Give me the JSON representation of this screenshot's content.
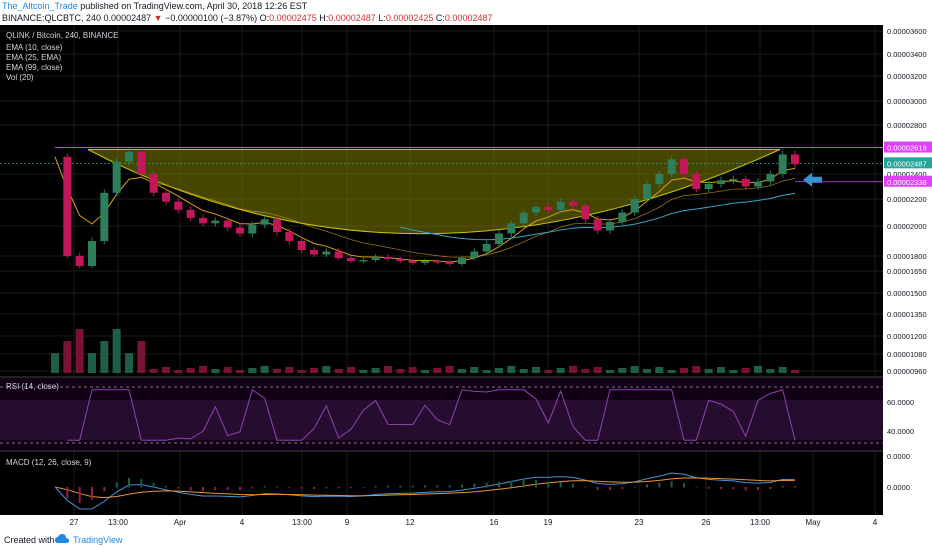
{
  "header": {
    "author": "The_Altcoin_Trade",
    "published": " published on TradingView.com, April 30, 2018 12:26 EST",
    "symbol": "BINANCE:QLCBTC, 240",
    "last": "0.00002487",
    "change": "−0.00000100 (−3.87%)",
    "o_label": "O:",
    "o": "0.00002475",
    "h_label": "H:",
    "h": "0.00002487",
    "l_label": "L:",
    "l": "0.00002425",
    "c_label": "C:",
    "c": "0.00002487"
  },
  "legend": {
    "title": "QLINK / Bitcoin, 240, BINANCE",
    "items": [
      "EMA (10, close)",
      "EMA (25, EMA)",
      "EMA (99, close)",
      "Vol (20)"
    ]
  },
  "rsi_label": "RSI (14, close)",
  "macd_label": "MACD (12, 26, close, 9)",
  "footer": {
    "created": "Created with",
    "brand": "TradingView"
  },
  "colors": {
    "up": "#2e7d5b",
    "down": "#c2185b",
    "bowl": "#808000",
    "resistance": "#e040fb",
    "arrow": "#3a8fd9",
    "ema_fast": "#d4a017",
    "ema_slow": "#3aa6c4",
    "rsi": "#8e44ad",
    "macd": "#4a90d9",
    "signal": "#e8933a"
  },
  "chart_data": {
    "type": "candlestick",
    "price_axis_ticks": [
      "0.00003600",
      "0.00003400",
      "0.00003200",
      "0.00003000",
      "0.00002800",
      "0.00002400",
      "0.00002200",
      "0.00002000",
      "0.00001800",
      "0.00001650",
      "0.00001500",
      "0.00001350",
      "0.00001200",
      "0.00001080",
      "0.00000960"
    ],
    "price_label_values": [
      3.6e-05,
      3.4e-05,
      3.2e-05,
      3e-05,
      2.8e-05,
      2.4e-05,
      2.2e-05,
      2e-05,
      1.8e-05,
      1.65e-05,
      1.5e-05,
      1.35e-05,
      1.2e-05,
      1.08e-05,
      9.6e-06
    ],
    "time_axis_ticks": [
      "27",
      "13:00",
      "Apr",
      "4",
      "13:00",
      "9",
      "12",
      "16",
      "19",
      "23",
      "26",
      "13:00",
      "May",
      "4"
    ],
    "resistance": {
      "label": "0.00002616",
      "value": 2.616e-05
    },
    "last_price": {
      "label": "0.00002487",
      "value": 2.487e-05
    },
    "ema_marker": {
      "label": "0.00002338",
      "value": 2.338e-05
    },
    "rsi_ticks": [
      "60.0000",
      "40.0000"
    ],
    "macd_ticks": [
      "0.0000",
      "0.0000"
    ],
    "price_path": [
      [
        0,
        2.54e-05
      ],
      [
        1,
        1.8e-05
      ],
      [
        2,
        1.7e-05
      ],
      [
        3,
        1.9e-05
      ],
      [
        4,
        2.25e-05
      ],
      [
        5,
        2.5e-05
      ],
      [
        6,
        2.58e-05
      ],
      [
        7,
        2.4e-05
      ],
      [
        8,
        2.25e-05
      ],
      [
        9,
        2.18e-05
      ],
      [
        10,
        2.12e-05
      ],
      [
        11,
        2.06e-05
      ],
      [
        12,
        2.02e-05
      ],
      [
        13,
        2.04e-05
      ],
      [
        14,
        1.99e-05
      ],
      [
        15,
        1.95e-05
      ],
      [
        16,
        2.01e-05
      ],
      [
        17,
        2.05e-05
      ],
      [
        18,
        1.96e-05
      ],
      [
        19,
        1.9e-05
      ],
      [
        20,
        1.84e-05
      ],
      [
        21,
        1.81e-05
      ],
      [
        22,
        1.83e-05
      ],
      [
        23,
        1.78e-05
      ],
      [
        24,
        1.75e-05
      ],
      [
        25,
        1.76e-05
      ],
      [
        26,
        1.79e-05
      ],
      [
        27,
        1.77e-05
      ],
      [
        28,
        1.75e-05
      ],
      [
        29,
        1.73e-05
      ],
      [
        30,
        1.75e-05
      ],
      [
        31,
        1.74e-05
      ],
      [
        32,
        1.72e-05
      ],
      [
        33,
        1.78e-05
      ],
      [
        34,
        1.83e-05
      ],
      [
        35,
        1.88e-05
      ],
      [
        36,
        1.95e-05
      ],
      [
        37,
        2.02e-05
      ],
      [
        38,
        2.1e-05
      ],
      [
        39,
        2.14e-05
      ],
      [
        40,
        2.12e-05
      ],
      [
        41,
        2.18e-05
      ],
      [
        42,
        2.15e-05
      ],
      [
        43,
        2.05e-05
      ],
      [
        44,
        1.97e-05
      ],
      [
        45,
        2.03e-05
      ],
      [
        46,
        2.1e-05
      ],
      [
        47,
        2.2e-05
      ],
      [
        48,
        2.32e-05
      ],
      [
        49,
        2.4e-05
      ],
      [
        50,
        2.52e-05
      ],
      [
        51,
        2.4e-05
      ],
      [
        52,
        2.28e-05
      ],
      [
        53,
        2.32e-05
      ],
      [
        54,
        2.35e-05
      ],
      [
        55,
        2.36e-05
      ],
      [
        56,
        2.3e-05
      ],
      [
        57,
        2.34e-05
      ],
      [
        58,
        2.4e-05
      ],
      [
        59,
        2.56e-05
      ],
      [
        60,
        2.48e-05
      ]
    ],
    "bowl_top_value": 2.6e-05,
    "bowl_bottom_value": 1.78e-05
  }
}
